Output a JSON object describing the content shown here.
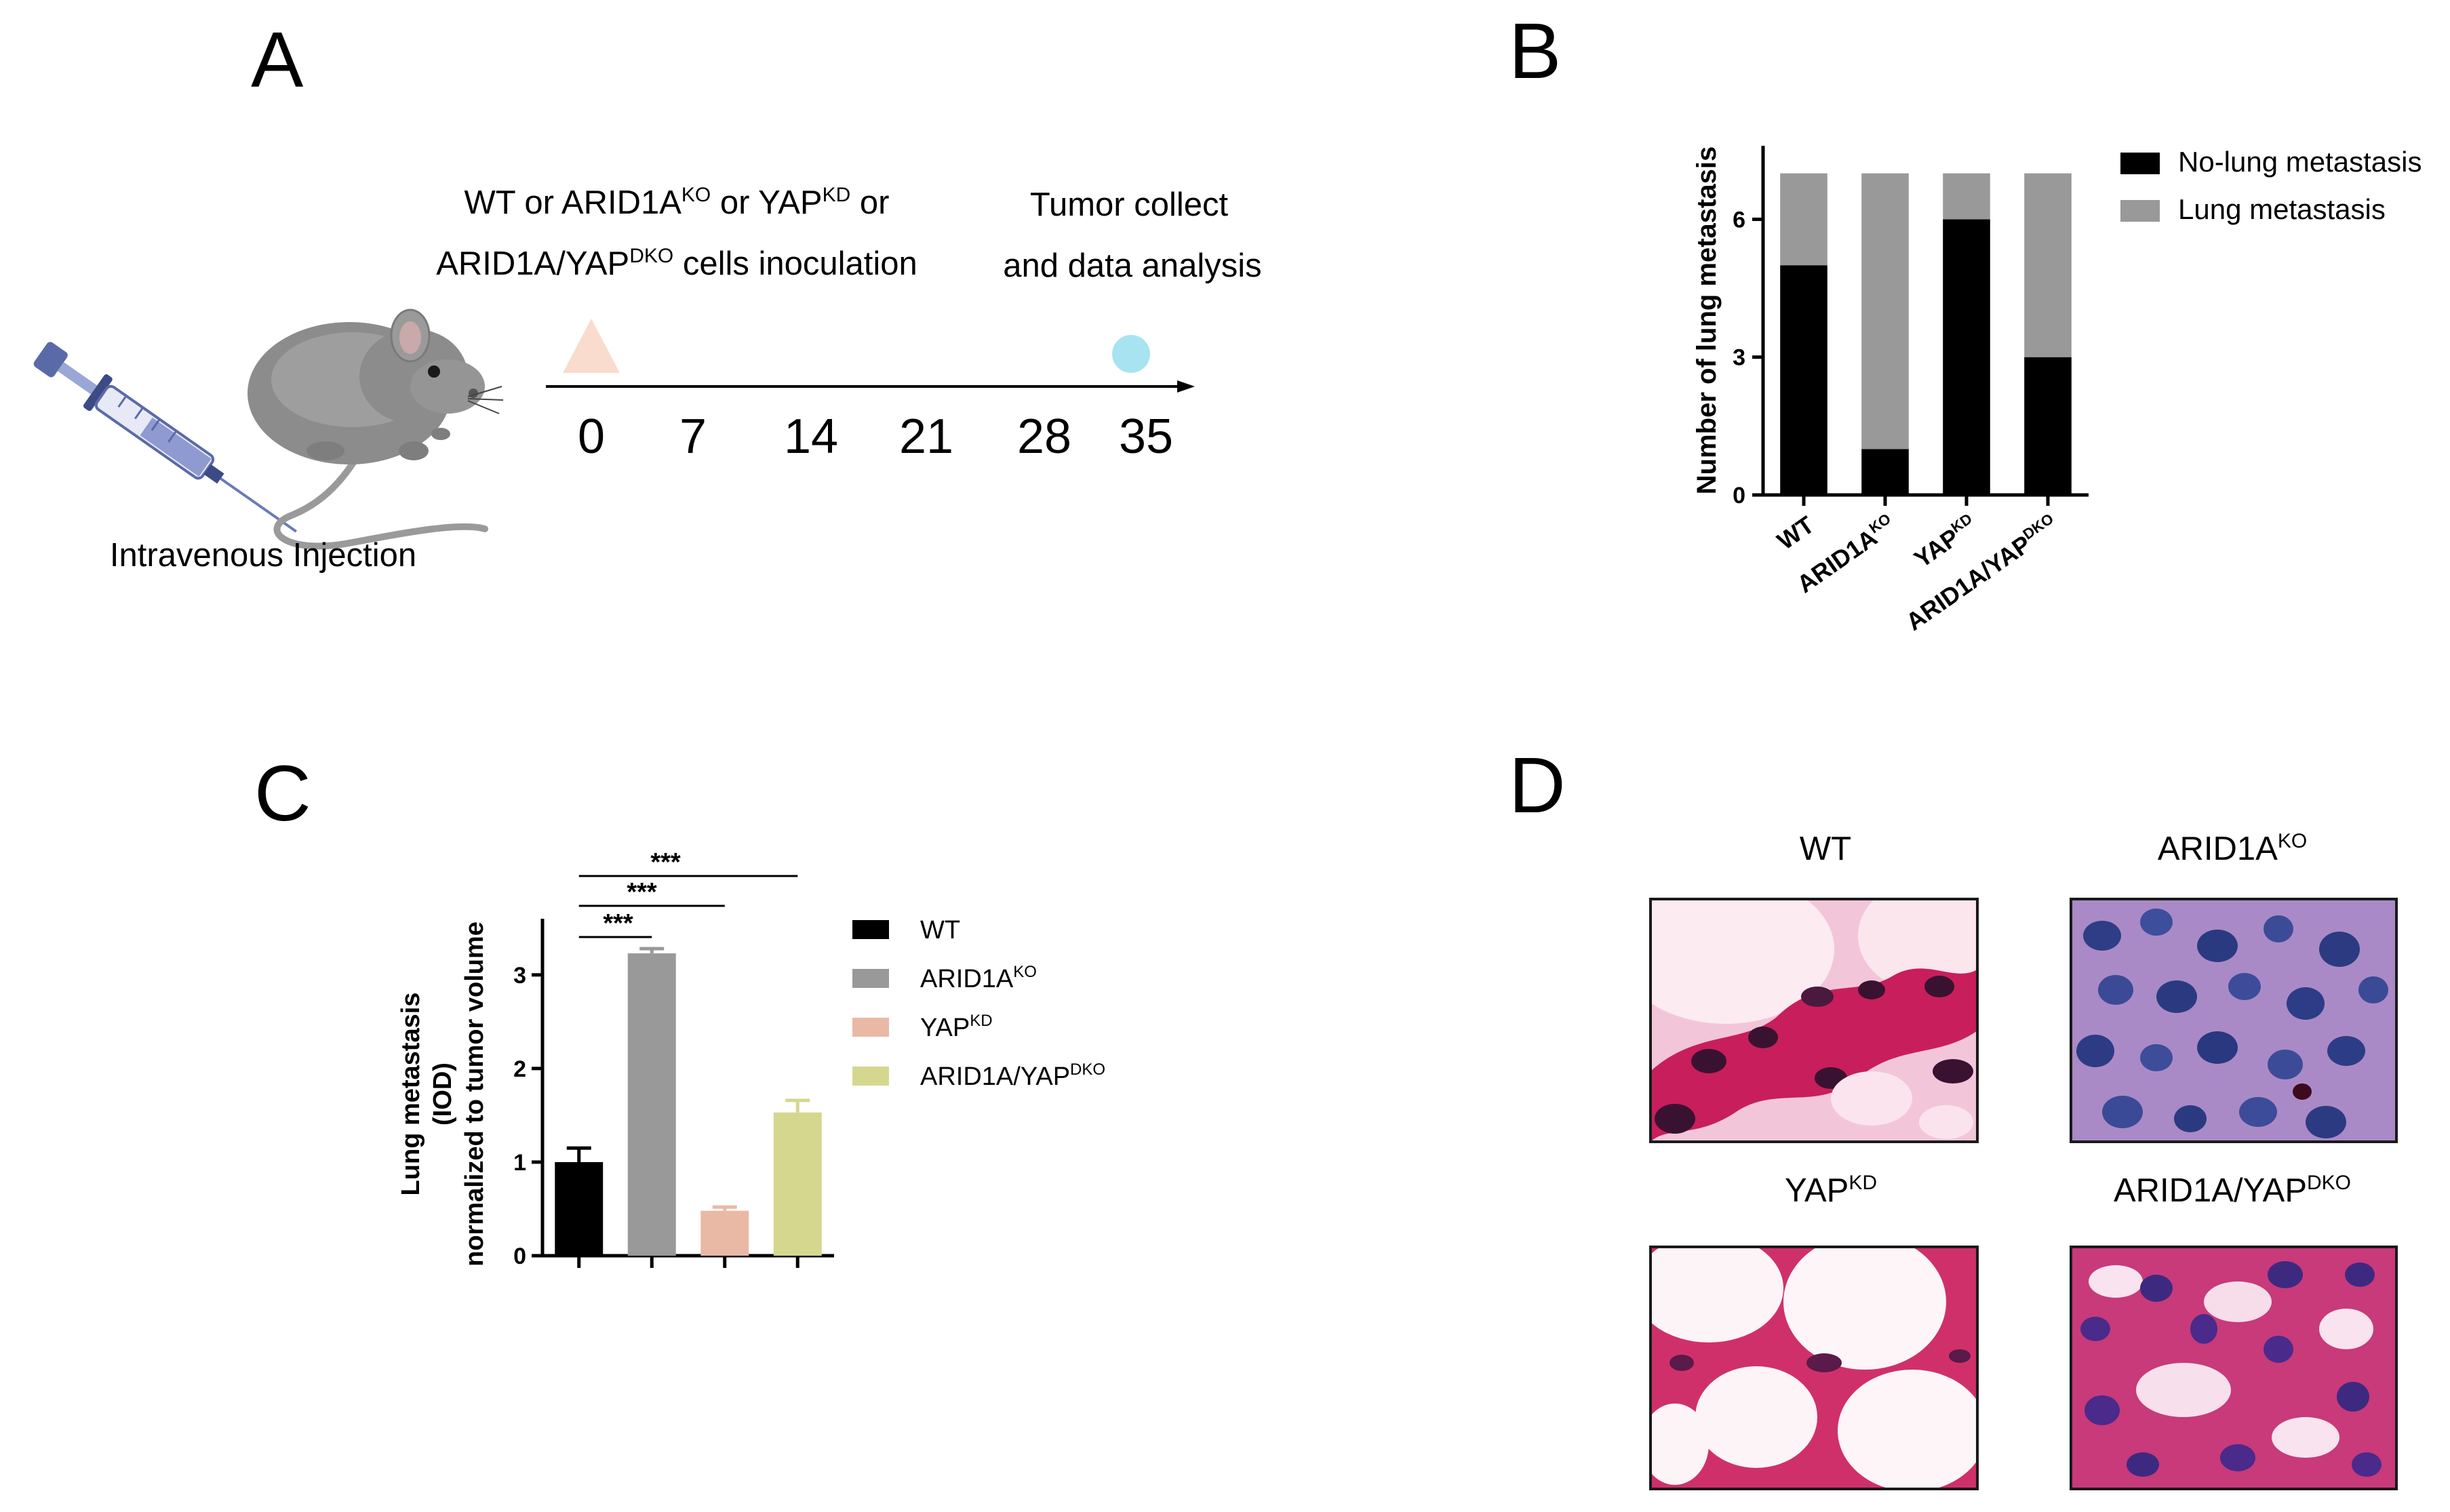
{
  "panels": {
    "A": {
      "letter": "A",
      "injection_label": "Intravenous Injection",
      "inoculation_line1": {
        "p1": "WT or ARID1A",
        "s1": "KO",
        "p2": " or YAP",
        "s2": "KD",
        "p3": " or"
      },
      "inoculation_line2": {
        "p1": "ARID1A/YAP",
        "s1": "DKO",
        "p2": " cells inoculation"
      },
      "collect_line1": "Tumor collect",
      "collect_line2": "and data analysis",
      "timeline_days": [
        "0",
        "7",
        "14",
        "21",
        "28",
        "35"
      ],
      "start_marker_color": "#f9dccd",
      "end_marker_color": "#a8e3f2",
      "syringe_icon": "syringe-icon",
      "mouse_icon": "mouse-icon"
    },
    "B": {
      "letter": "B"
    },
    "C": {
      "letter": "C"
    },
    "D": {
      "letter": "D",
      "images": [
        {
          "label_base": "WT",
          "label_sup": "",
          "palette": "wt"
        },
        {
          "label_base": "ARID1A",
          "label_sup": "KO",
          "palette": "ko"
        },
        {
          "label_base": "YAP",
          "label_sup": "KD",
          "palette": "kd"
        },
        {
          "label_base": "ARID1A/YAP",
          "label_sup": "DKO",
          "palette": "dko"
        }
      ]
    }
  },
  "chart_data": [
    {
      "panel": "B",
      "type": "bar",
      "stacked": true,
      "categories": [
        {
          "base": "WT",
          "sup": ""
        },
        {
          "base": "ARID1A",
          "sup": "KO"
        },
        {
          "base": "YAP",
          "sup": "KD"
        },
        {
          "base": "ARID1A/YAP",
          "sup": "DKO"
        }
      ],
      "series": [
        {
          "name": "No-lung metastasis",
          "color": "#000000",
          "values": [
            5,
            1,
            6,
            3
          ]
        },
        {
          "name": "Lung metastasis",
          "color": "#999999",
          "values": [
            2,
            6,
            1,
            4
          ]
        }
      ],
      "ylabel": "Number of lung metastasis",
      "yticks": [
        0,
        3,
        6
      ],
      "ylim": [
        0,
        7.6
      ],
      "legend_position": "top-right"
    },
    {
      "panel": "C",
      "type": "bar",
      "categories": [
        {
          "base": "WT",
          "sup": ""
        },
        {
          "base": "ARID1A",
          "sup": "KO"
        },
        {
          "base": "YAP",
          "sup": "KD"
        },
        {
          "base": "ARID1A/YAP",
          "sup": "DKO"
        }
      ],
      "values": [
        1.0,
        3.23,
        0.48,
        1.53
      ],
      "errors": [
        0.15,
        0.05,
        0.04,
        0.13
      ],
      "colors": [
        "#000000",
        "#999999",
        "#e9b9a5",
        "#d5d78f"
      ],
      "ylabel_lines": [
        "Lung metastasis",
        "(IOD)",
        "normalized to tumor volume"
      ],
      "yticks": [
        0,
        1,
        2,
        3
      ],
      "ylim": [
        0,
        3.6
      ],
      "significance": [
        {
          "from": 0,
          "to": 1,
          "label": "***"
        },
        {
          "from": 0,
          "to": 2,
          "label": "***"
        },
        {
          "from": 0,
          "to": 3,
          "label": "***"
        }
      ],
      "legend_position": "right"
    }
  ]
}
